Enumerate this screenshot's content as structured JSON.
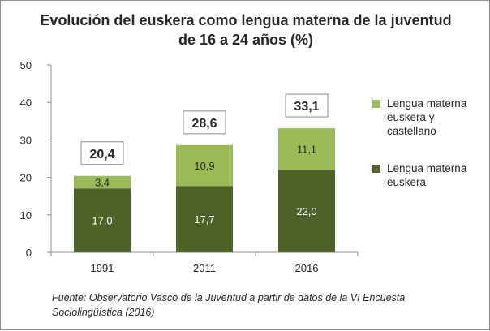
{
  "chart_data": {
    "type": "bar",
    "stacked": true,
    "title": "Evolución del euskera como lengua materna de la juventud de 16 a 24 años (%)",
    "categories": [
      "1991",
      "2011",
      "2016"
    ],
    "series": [
      {
        "name": "Lengua materna euskera",
        "values": [
          17.0,
          17.7,
          22.0
        ],
        "labels": [
          "17,0",
          "17,7",
          "22,0"
        ],
        "color": "#4f6228",
        "label_color": "#ffffff"
      },
      {
        "name": "Lengua materna euskera y castellano",
        "values": [
          3.4,
          10.9,
          11.1
        ],
        "labels": [
          "3,4",
          "10,9",
          "11,1"
        ],
        "color": "#9bbb59",
        "label_color": "#262626"
      }
    ],
    "totals": {
      "values": [
        20.4,
        28.6,
        33.1
      ],
      "labels": [
        "20,4",
        "28,6",
        "33,1"
      ]
    },
    "ylim": [
      0,
      50
    ],
    "yticks": [
      0,
      10,
      20,
      30,
      40,
      50
    ],
    "grid": false,
    "legend_position": "right",
    "xlabel": "",
    "ylabel": ""
  },
  "legend": {
    "item1": "Lengua materna euskera y castellano",
    "item2": "Lengua materna euskera"
  },
  "source_text": "Fuente: Observatorio Vasco de la Juventud a partir de datos de la VI Encuesta Sociolingüística (2016)"
}
